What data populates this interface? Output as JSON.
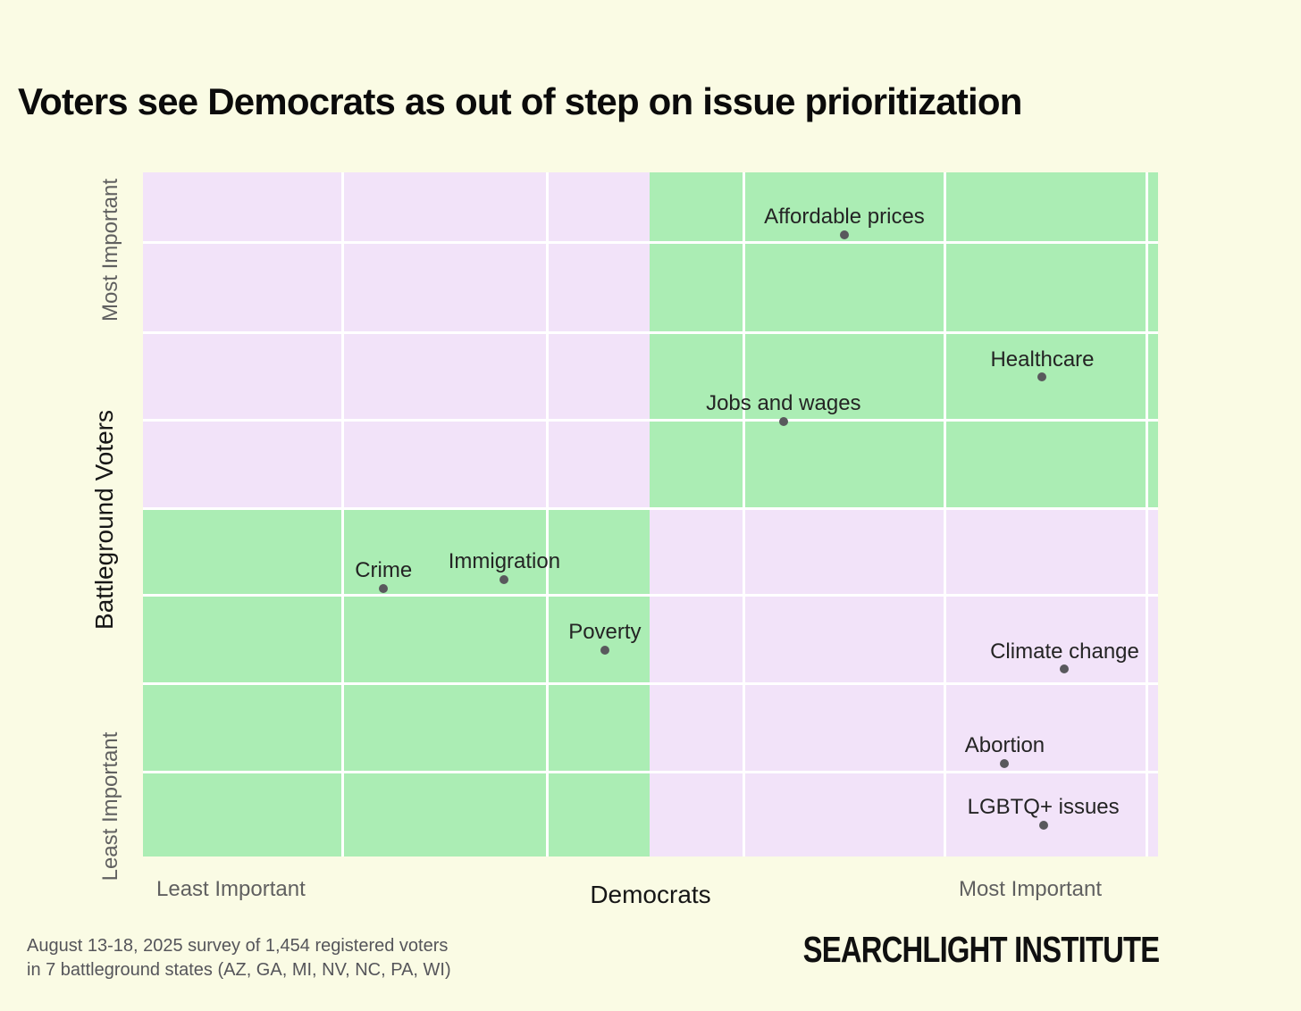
{
  "header": {
    "title": "Voters see Democrats as out of step on issue prioritization"
  },
  "colors": {
    "background": "#FAFBE4",
    "quadrant_green": "#ABEDB4",
    "quadrant_lavender": "#F2E3F9",
    "gridline": "#FFFFFF",
    "dot": "#59595D"
  },
  "chart_data": {
    "type": "scatter",
    "title": "Voters see Democrats as out of step on issue prioritization",
    "x_axis": {
      "label": "Democrats",
      "min_label": "Least Important",
      "max_label": "Most Important",
      "range": [
        0,
        100
      ]
    },
    "y_axis": {
      "label": "Battleground Voters",
      "min_label": "Least Important",
      "max_label": "Most Important",
      "range": [
        0,
        100
      ]
    },
    "layout": {
      "grid": true,
      "quadrant_split_x": 49.9,
      "quadrant_split_y": 49.4,
      "green_quadrants": [
        "top-right",
        "bottom-left"
      ],
      "lavender_quadrants": [
        "top-left",
        "bottom-right"
      ],
      "vertical_gridlines_pct": [
        19.7,
        39.8,
        59.2,
        79.0,
        98.9
      ],
      "horizontal_gridlines_pct": [
        10.3,
        23.4,
        36.2,
        49.2,
        61.8,
        74.8,
        87.7
      ]
    },
    "points": [
      {
        "label": "Affordable prices",
        "x": 69.1,
        "y": 90.9
      },
      {
        "label": "Healthcare",
        "x": 88.6,
        "y": 70.1
      },
      {
        "label": "Jobs and wages",
        "x": 63.1,
        "y": 63.6
      },
      {
        "label": "Crime",
        "x": 23.7,
        "y": 39.2
      },
      {
        "label": "Immigration",
        "x": 35.6,
        "y": 40.5
      },
      {
        "label": "Poverty",
        "x": 45.5,
        "y": 30.2
      },
      {
        "label": "Climate change",
        "x": 90.8,
        "y": 27.4
      },
      {
        "label": "Abortion",
        "x": 84.9,
        "y": 13.6
      },
      {
        "label": "LGBTQ+ issues",
        "x": 88.7,
        "y": 4.6
      }
    ]
  },
  "footer": {
    "source_line1": "August 13-18, 2025 survey of 1,454 registered voters",
    "source_line2": "in 7 battleground states (AZ, GA, MI, NV, NC, PA, WI)",
    "logo_text": "SEARCHLIGHT INSTITUTE"
  }
}
